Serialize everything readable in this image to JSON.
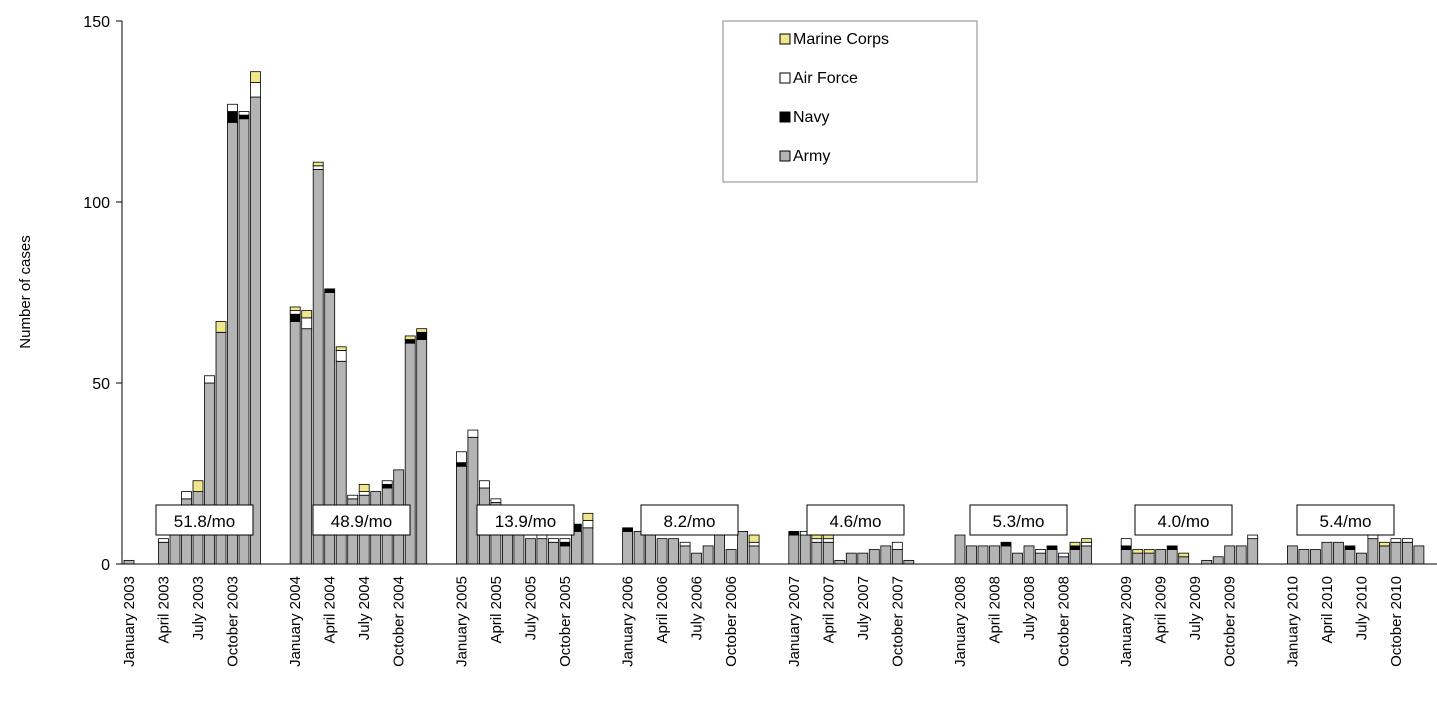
{
  "chart_data": {
    "type": "bar",
    "stacked": true,
    "ylabel": "Number of cases",
    "ylim": [
      0,
      150
    ],
    "yticks": [
      0,
      50,
      100,
      150
    ],
    "grid": false,
    "legend_position": "top-right",
    "series_colors": {
      "Army": "#b4b4b4",
      "Navy": "#000000",
      "Air Force": "#ffffff",
      "Marine Corps": "#f0e68c"
    },
    "legend": [
      "Marine Corps",
      "Air Force",
      "Navy",
      "Army"
    ],
    "years": [
      "2003",
      "2004",
      "2005",
      "2006",
      "2007",
      "2008",
      "2009",
      "2010"
    ],
    "x_tick_labels": [
      "January 2003",
      "April 2003",
      "July 2003",
      "October 2003",
      "January 2004",
      "April 2004",
      "July 2004",
      "October 2004",
      "January 2005",
      "April 2005",
      "July 2005",
      "October 2005",
      "January 2006",
      "April 2006",
      "July 2006",
      "October 2006",
      "January 2007",
      "April 2007",
      "July 2007",
      "October 2007",
      "January 2008",
      "April 2008",
      "July 2008",
      "October 2008",
      "January 2009",
      "April 2009",
      "July 2009",
      "October 2009",
      "January 2010",
      "April 2010",
      "July 2010",
      "October 2010"
    ],
    "annotations": [
      "51.8/mo",
      "48.9/mo",
      "13.9/mo",
      "8.2/mo",
      "4.6/mo",
      "5.3/mo",
      "4.0/mo",
      "5.4/mo"
    ],
    "monthly": [
      [
        [
          1,
          0,
          0,
          0
        ],
        [
          0,
          0,
          0,
          0
        ],
        [
          0,
          0,
          0,
          0
        ],
        [
          6,
          0,
          1,
          0
        ],
        [
          12,
          0,
          1,
          0
        ],
        [
          18,
          0,
          2,
          0
        ],
        [
          20,
          0,
          0,
          3
        ],
        [
          50,
          0,
          2,
          0
        ],
        [
          64,
          0,
          0,
          3
        ],
        [
          122,
          3,
          2,
          0
        ],
        [
          123,
          1,
          1,
          0
        ],
        [
          129,
          0,
          4,
          3
        ]
      ],
      [
        [
          67,
          2,
          1,
          1
        ],
        [
          65,
          0,
          3,
          2
        ],
        [
          109,
          0,
          1,
          1
        ],
        [
          75,
          1,
          0,
          0
        ],
        [
          56,
          0,
          3,
          1
        ],
        [
          18,
          0,
          1,
          0
        ],
        [
          19,
          0,
          1,
          2
        ],
        [
          20,
          0,
          0,
          0
        ],
        [
          21,
          1,
          1,
          0
        ],
        [
          26,
          0,
          0,
          0
        ],
        [
          61,
          1,
          0,
          1
        ],
        [
          62,
          2,
          0,
          1
        ]
      ],
      [
        [
          27,
          1,
          3,
          0
        ],
        [
          35,
          0,
          2,
          0
        ],
        [
          21,
          0,
          2,
          0
        ],
        [
          17,
          0,
          1,
          0
        ],
        [
          10,
          0,
          1,
          0
        ],
        [
          8,
          0,
          1,
          0
        ],
        [
          7,
          0,
          0,
          0
        ],
        [
          7,
          0,
          1,
          0
        ],
        [
          6,
          0,
          1,
          0
        ],
        [
          5,
          1,
          1,
          0
        ],
        [
          9,
          2,
          0,
          0
        ],
        [
          10,
          0,
          2,
          2
        ]
      ],
      [
        [
          9,
          1,
          0,
          0
        ],
        [
          9,
          0,
          0,
          0
        ],
        [
          8,
          0,
          2,
          1
        ],
        [
          7,
          0,
          0,
          0
        ],
        [
          7,
          0,
          0,
          0
        ],
        [
          5,
          0,
          1,
          0
        ],
        [
          3,
          0,
          0,
          0
        ],
        [
          5,
          0,
          0,
          0
        ],
        [
          8,
          0,
          0,
          0
        ],
        [
          4,
          0,
          0,
          0
        ],
        [
          9,
          0,
          0,
          0
        ],
        [
          5,
          0,
          1,
          2
        ]
      ],
      [
        [
          8,
          1,
          0,
          0
        ],
        [
          8,
          0,
          1,
          0
        ],
        [
          6,
          0,
          1,
          1
        ],
        [
          6,
          0,
          1,
          1
        ],
        [
          1,
          0,
          0,
          0
        ],
        [
          3,
          0,
          0,
          0
        ],
        [
          3,
          0,
          0,
          0
        ],
        [
          4,
          0,
          0,
          0
        ],
        [
          5,
          0,
          0,
          0
        ],
        [
          4,
          0,
          2,
          0
        ],
        [
          1,
          0,
          0,
          0
        ],
        [
          0,
          0,
          0,
          0
        ]
      ],
      [
        [
          8,
          0,
          0,
          0
        ],
        [
          5,
          0,
          0,
          0
        ],
        [
          5,
          0,
          0,
          0
        ],
        [
          5,
          0,
          0,
          0
        ],
        [
          5,
          1,
          0,
          0
        ],
        [
          3,
          0,
          0,
          0
        ],
        [
          5,
          0,
          0,
          0
        ],
        [
          3,
          0,
          1,
          0
        ],
        [
          4,
          1,
          0,
          0
        ],
        [
          2,
          0,
          1,
          0
        ],
        [
          4,
          1,
          0,
          1
        ],
        [
          5,
          0,
          1,
          1
        ]
      ],
      [
        [
          4,
          1,
          2,
          0
        ],
        [
          3,
          0,
          0,
          1
        ],
        [
          3,
          0,
          0,
          1
        ],
        [
          4,
          0,
          0,
          0
        ],
        [
          4,
          1,
          0,
          0
        ],
        [
          2,
          0,
          0,
          1
        ],
        [
          0,
          0,
          0,
          0
        ],
        [
          1,
          0,
          0,
          0
        ],
        [
          2,
          0,
          0,
          0
        ],
        [
          5,
          0,
          0,
          0
        ],
        [
          5,
          0,
          0,
          0
        ],
        [
          7,
          0,
          1,
          0
        ]
      ],
      [
        [
          5,
          0,
          0,
          0
        ],
        [
          4,
          0,
          0,
          0
        ],
        [
          4,
          0,
          0,
          0
        ],
        [
          6,
          0,
          0,
          0
        ],
        [
          6,
          0,
          0,
          0
        ],
        [
          4,
          1,
          0,
          0
        ],
        [
          3,
          0,
          0,
          0
        ],
        [
          7,
          0,
          1,
          0
        ],
        [
          5,
          0,
          0,
          1
        ],
        [
          6,
          0,
          1,
          0
        ],
        [
          6,
          0,
          1,
          0
        ],
        [
          5,
          0,
          0,
          0
        ]
      ]
    ]
  }
}
